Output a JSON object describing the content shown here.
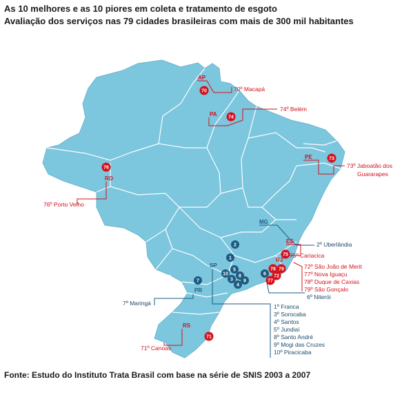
{
  "header": {
    "title": "As 10 melhores e as 10 piores em coleta e tratamento de esgoto",
    "subtitle": "Avaliação dos serviços nas 79 cidades brasileiras com mais de 300 mil habitantes"
  },
  "source": "Fonte: Estudo do Instituto Trata Brasil com base na série de SNIS 2003 a 2007",
  "colors": {
    "map": "#7cc6de",
    "border": "#ffffff",
    "worst": "#d4101a",
    "best": "#1d5a80"
  },
  "states": {
    "AP": "AP",
    "PA": "PA",
    "RO": "RO",
    "PE": "PE",
    "MG": "MG",
    "ES": "ES",
    "RJ": "RJ",
    "SP": "SP",
    "PR": "PR",
    "RS": "RS"
  },
  "worst": {
    "macapa": {
      "rank": "70",
      "label": "70º Macapá"
    },
    "belem": {
      "rank": "74",
      "label": "74º Belém"
    },
    "porto_velho": {
      "rank": "76",
      "label": "76º Porto Velho"
    },
    "jaboatao": {
      "rank": "73",
      "label_1": "73º Jaboatão dos",
      "label_2": "Guararapes"
    },
    "cariacica": {
      "rank": "75",
      "label": "75º Cariacica"
    },
    "canoas": {
      "rank": "71",
      "label": "71º Canoas"
    },
    "rj_markers": [
      "78",
      "79",
      "72",
      "77"
    ],
    "rj_labels": [
      "72º São João de Merit",
      "77º Nova Iguaçu",
      "78º Duque de Caxias",
      "79º São Gonçalo"
    ]
  },
  "best": {
    "uberlandia": {
      "rank": "2",
      "label": "2º Uberlândia"
    },
    "niteroi": {
      "rank": "6",
      "label": "6º Niterói"
    },
    "maringa": {
      "rank": "7",
      "label": "7º Maringá"
    },
    "sp_markers": [
      "1",
      "5",
      "10",
      "8",
      "3",
      "9",
      "4"
    ],
    "sp_labels": [
      "1º Franca",
      "3º Sorocaba",
      "4º Santos",
      "5º Jundiaí",
      "8º Santo André",
      "9º Mogi das Cruzes",
      "10º Piracicaba"
    ]
  }
}
